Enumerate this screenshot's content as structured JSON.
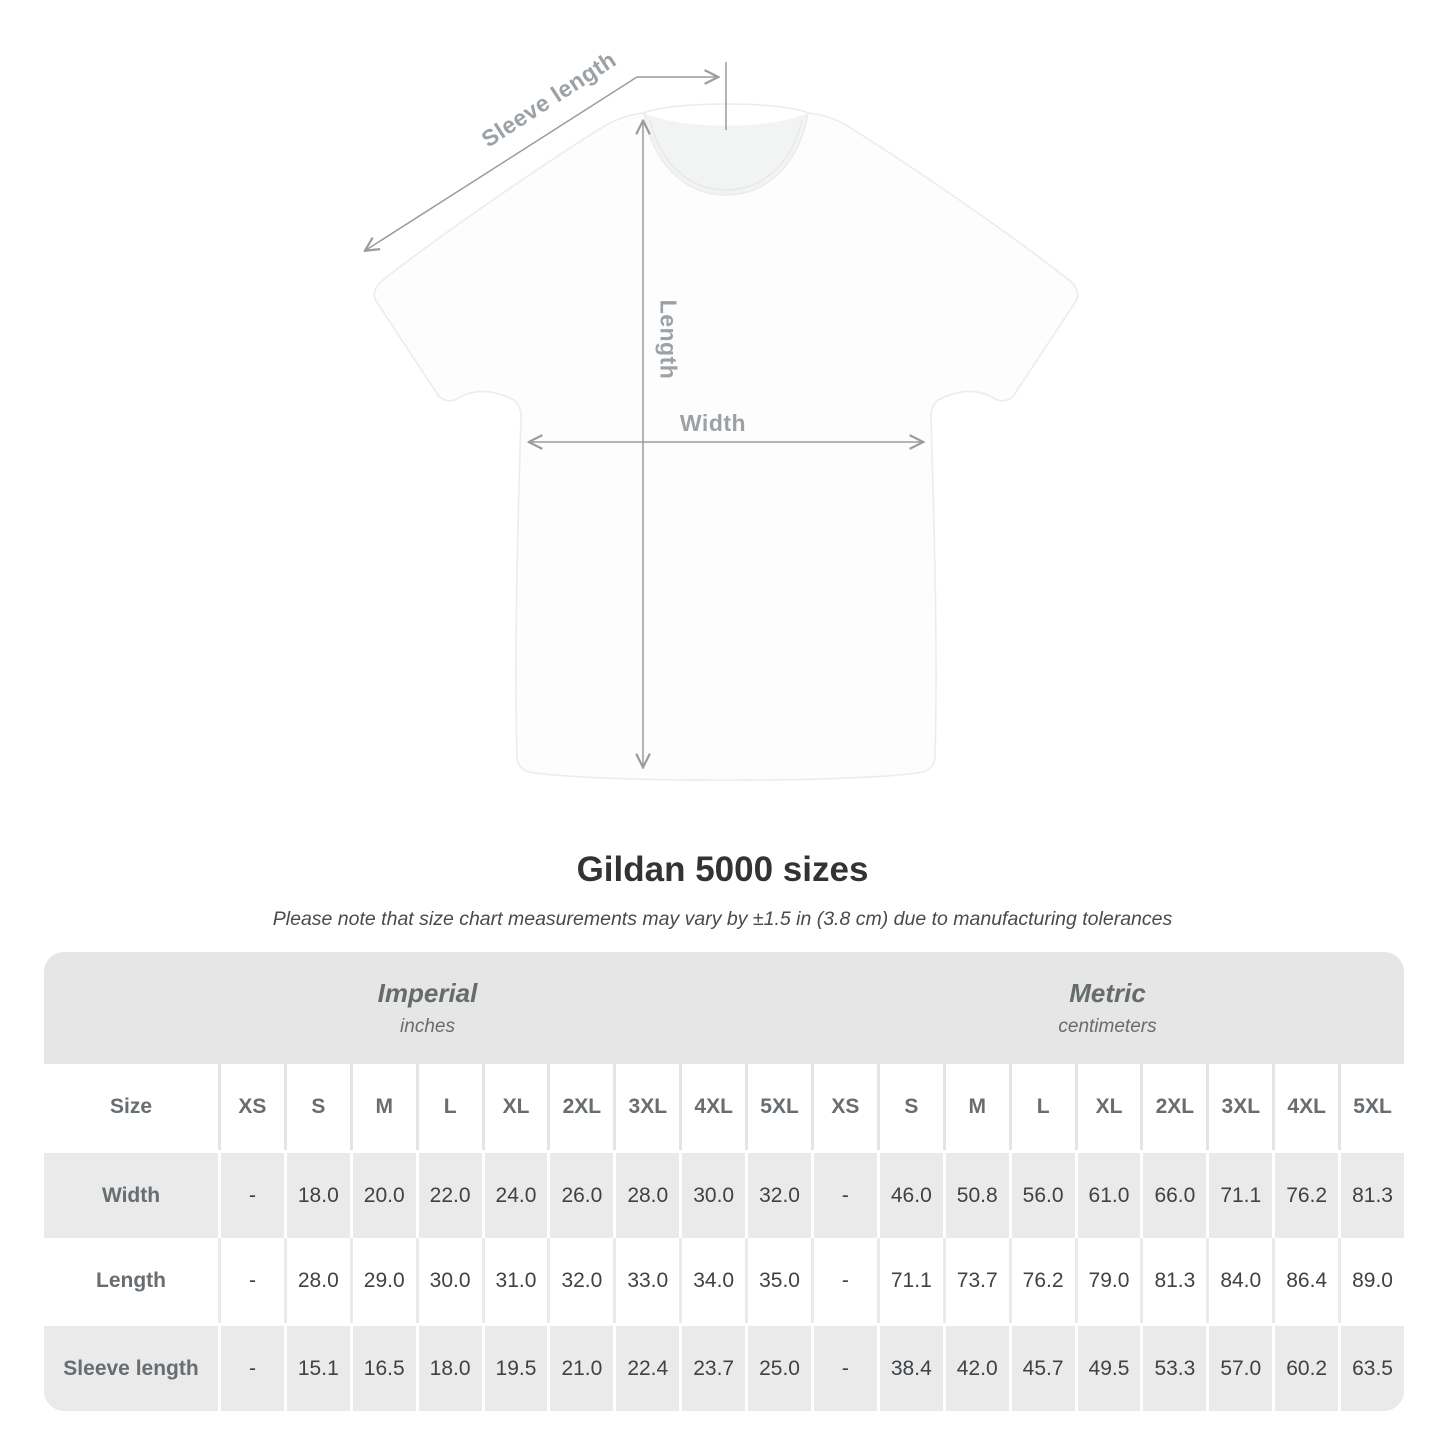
{
  "diagram": {
    "sleeve_length_label": "Sleeve length",
    "length_label": "Length",
    "width_label": "Width"
  },
  "header": {
    "title": "Gildan 5000 sizes",
    "subtitle": "Please note that size chart measurements may vary by ±1.5 in (3.8 cm) due to manufacturing tolerances"
  },
  "chart_data": {
    "type": "table",
    "title": "Gildan 5000 sizes",
    "note": "Please note that size chart measurements may vary by ±1.5 in (3.8 cm) due to manufacturing tolerances",
    "size_column_header": "Size",
    "unit_groups": [
      {
        "label": "Imperial",
        "unit": "inches",
        "sizes": [
          "XS",
          "S",
          "M",
          "L",
          "XL",
          "2XL",
          "3XL",
          "4XL",
          "5XL"
        ]
      },
      {
        "label": "Metric",
        "unit": "centimeters",
        "sizes": [
          "XS",
          "S",
          "M",
          "L",
          "XL",
          "2XL",
          "3XL",
          "4XL",
          "5XL"
        ]
      }
    ],
    "rows": [
      {
        "label": "Width",
        "imperial": [
          "-",
          "18.0",
          "20.0",
          "22.0",
          "24.0",
          "26.0",
          "28.0",
          "30.0",
          "32.0"
        ],
        "metric": [
          "-",
          "46.0",
          "50.8",
          "56.0",
          "61.0",
          "66.0",
          "71.1",
          "76.2",
          "81.3"
        ]
      },
      {
        "label": "Length",
        "imperial": [
          "-",
          "28.0",
          "29.0",
          "30.0",
          "31.0",
          "32.0",
          "33.0",
          "34.0",
          "35.0"
        ],
        "metric": [
          "-",
          "71.1",
          "73.7",
          "76.2",
          "79.0",
          "81.3",
          "84.0",
          "86.4",
          "89.0"
        ]
      },
      {
        "label": "Sleeve length",
        "imperial": [
          "-",
          "15.1",
          "16.5",
          "18.0",
          "19.5",
          "21.0",
          "22.4",
          "23.7",
          "25.0"
        ],
        "metric": [
          "-",
          "38.4",
          "42.0",
          "45.7",
          "49.5",
          "53.3",
          "57.0",
          "60.2",
          "63.5"
        ]
      }
    ]
  },
  "colors": {
    "band_bg": "#e5e6e5",
    "alt_row_bg": "#eaeaea",
    "header_text": "#676d70",
    "value_text": "#3e4245",
    "diagram_label": "#9ba1a5",
    "arrow": "#9c9c9c",
    "title_text": "#333333"
  }
}
